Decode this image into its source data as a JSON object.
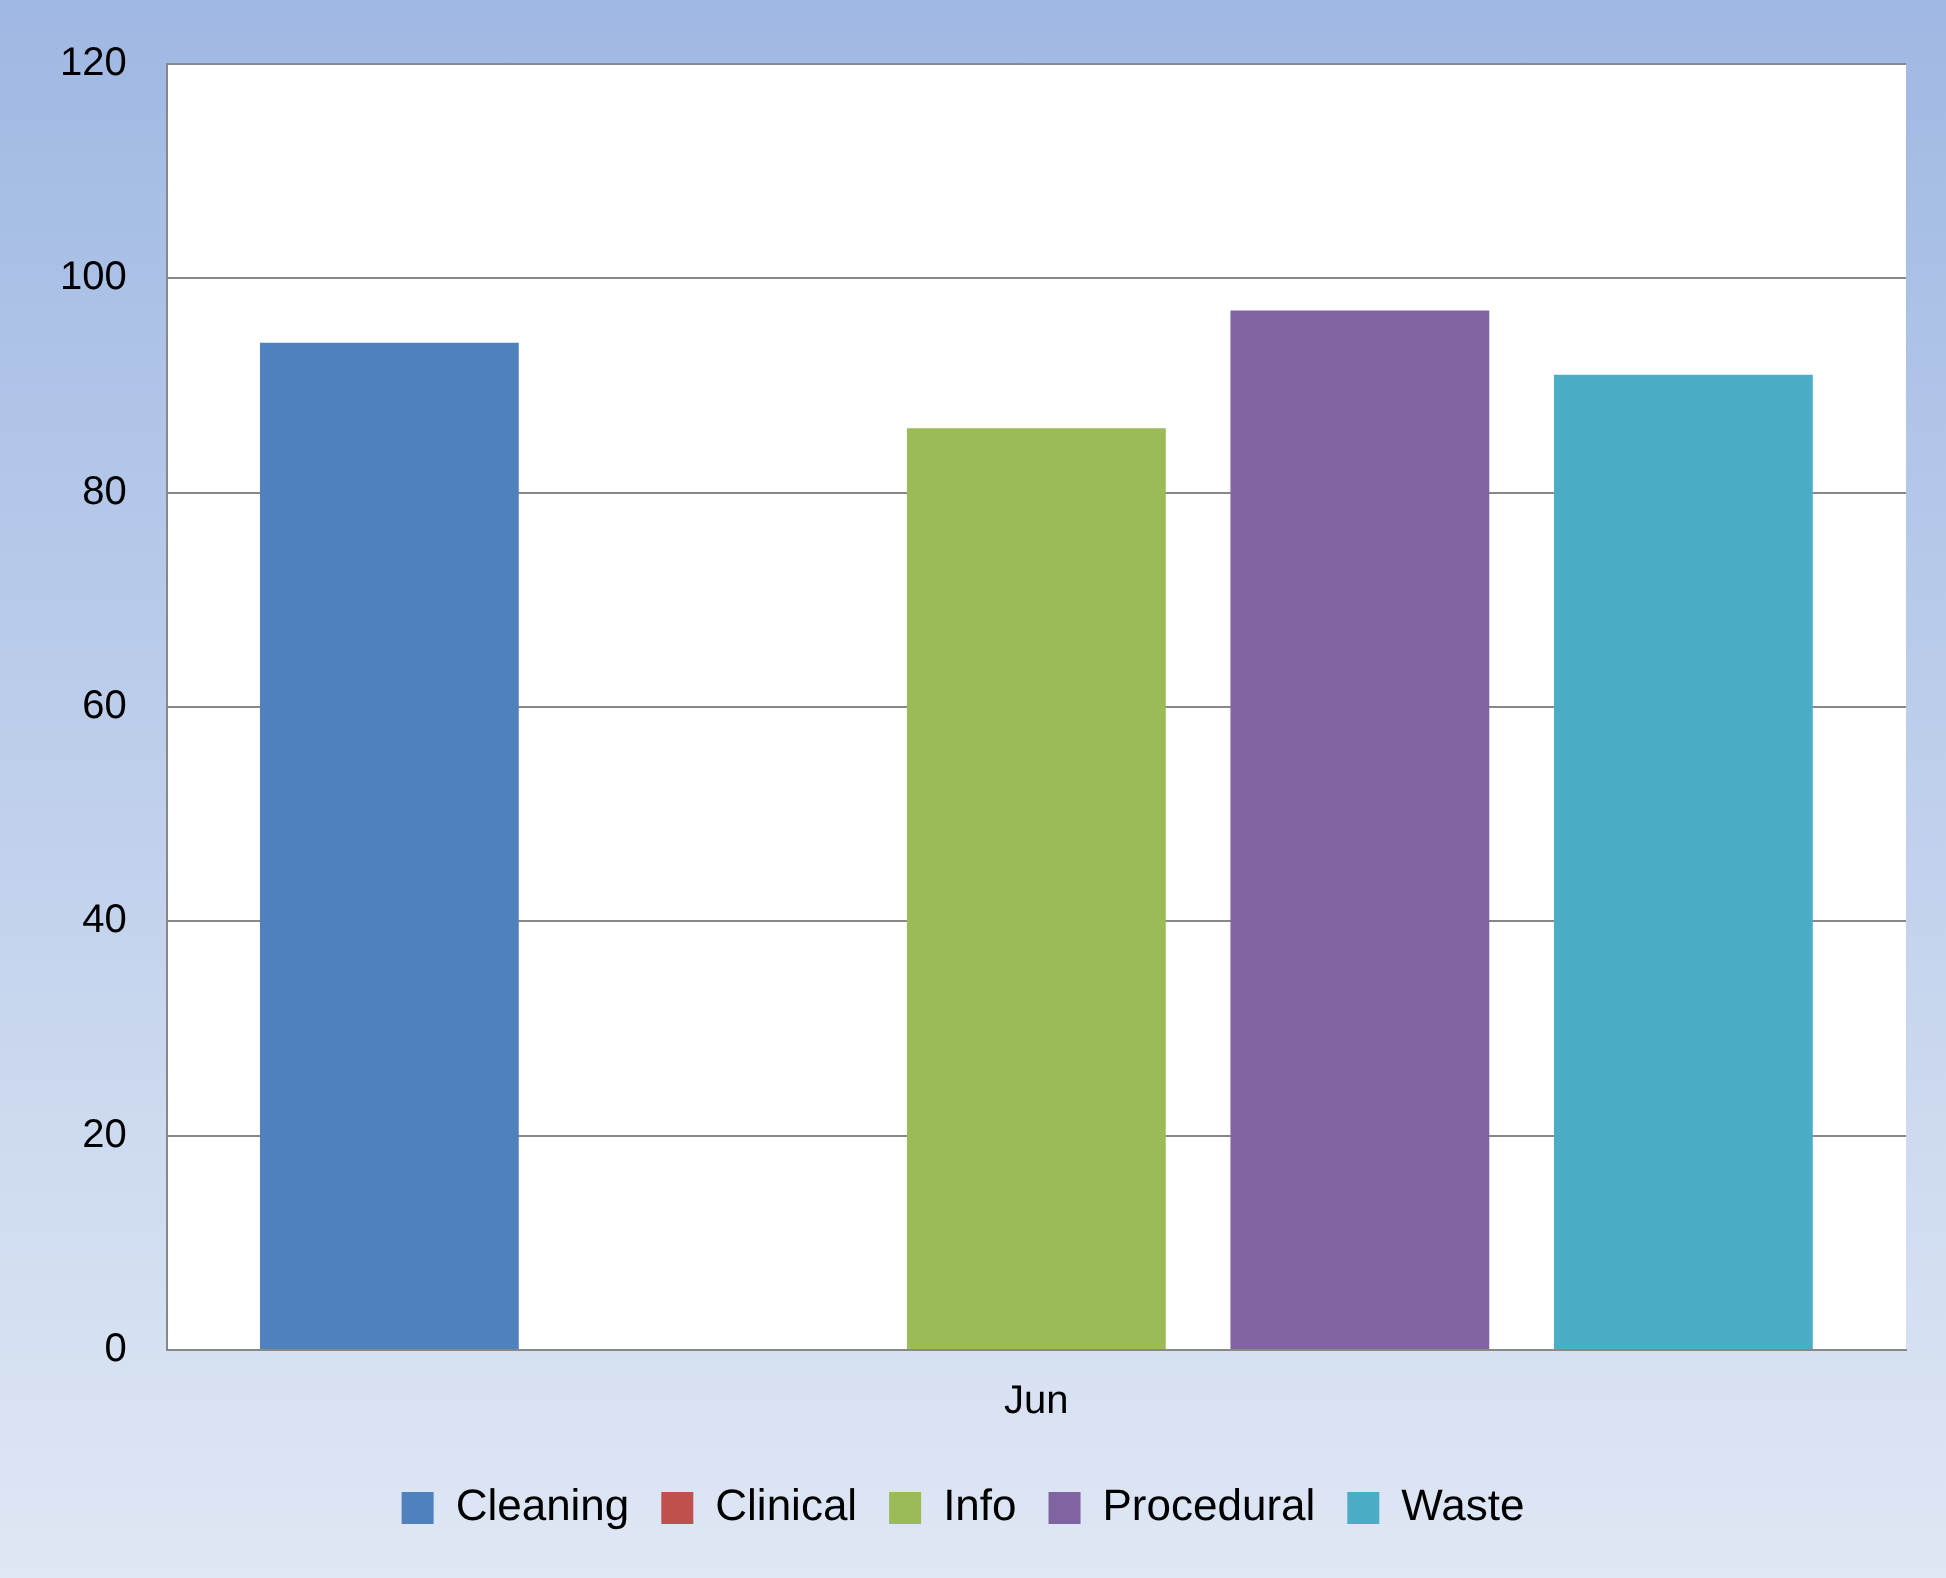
{
  "chart_data": {
    "type": "bar",
    "categories": [
      "Jun"
    ],
    "series": [
      {
        "name": "Cleaning",
        "color": "#4f81bd",
        "values": [
          94
        ]
      },
      {
        "name": "Clinical",
        "color": "#c0504d",
        "values": [
          null
        ]
      },
      {
        "name": "Info",
        "color": "#9bbb59",
        "values": [
          86
        ]
      },
      {
        "name": "Procedural",
        "color": "#8064a2",
        "values": [
          97
        ]
      },
      {
        "name": "Waste",
        "color": "#4bacc6",
        "values": [
          91
        ]
      }
    ],
    "ylim": [
      0,
      120
    ],
    "yticks": [
      0,
      20,
      40,
      60,
      80,
      100,
      120
    ],
    "grid": "y",
    "legend": "bottom"
  }
}
